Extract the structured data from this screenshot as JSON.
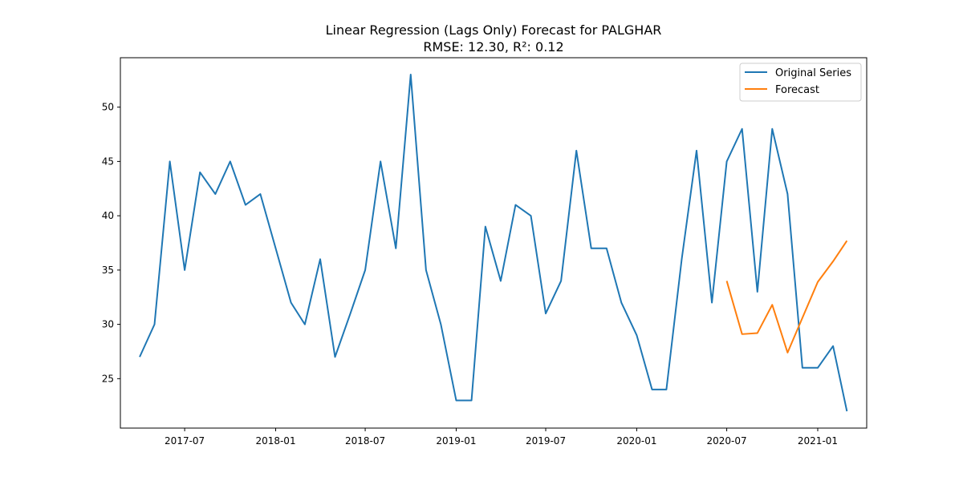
{
  "chart_data": {
    "type": "line",
    "title": "Linear Regression (Lags Only) Forecast for PALGHAR",
    "subtitle": "RMSE: 12.30, R²: 0.12",
    "xlabel": "",
    "ylabel": "",
    "ylim": [
      20.45,
      54.55
    ],
    "xlim": [
      "2017-02-21",
      "2021-04-10"
    ],
    "x_ticks": [
      "2017-07",
      "2018-01",
      "2018-07",
      "2019-01",
      "2019-07",
      "2020-01",
      "2020-07",
      "2021-01"
    ],
    "y_ticks": [
      25,
      30,
      35,
      40,
      45,
      50
    ],
    "grid": false,
    "legend_position": "top-right",
    "series": [
      {
        "name": "Original Series",
        "color": "#1f77b4",
        "x": [
          "2017-04-01",
          "2017-05-01",
          "2017-06-01",
          "2017-07-01",
          "2017-08-01",
          "2017-09-01",
          "2017-10-01",
          "2017-11-01",
          "2017-12-01",
          "2018-01-01",
          "2018-02-01",
          "2018-03-01",
          "2018-04-01",
          "2018-05-01",
          "2018-06-01",
          "2018-07-01",
          "2018-08-01",
          "2018-09-01",
          "2018-10-01",
          "2018-11-01",
          "2018-12-01",
          "2019-01-01",
          "2019-02-01",
          "2019-03-01",
          "2019-04-01",
          "2019-05-01",
          "2019-06-01",
          "2019-07-01",
          "2019-08-01",
          "2019-09-01",
          "2019-10-01",
          "2019-11-01",
          "2019-12-01",
          "2020-01-01",
          "2020-02-01",
          "2020-03-01",
          "2020-04-01",
          "2020-05-01",
          "2020-06-01",
          "2020-07-01",
          "2020-08-01",
          "2020-09-01",
          "2020-10-01",
          "2020-11-01",
          "2020-12-01",
          "2021-01-01",
          "2021-02-01",
          "2021-03-01"
        ],
        "values": [
          27,
          30,
          45,
          35,
          44,
          42,
          45,
          41,
          42,
          37,
          32,
          30,
          36,
          27,
          31,
          35,
          45,
          37,
          53,
          35,
          30,
          23,
          23,
          39,
          34,
          41,
          40,
          31,
          34,
          46,
          37,
          37,
          32,
          29,
          24,
          24,
          36,
          46,
          32,
          45,
          48,
          33,
          48,
          42,
          26,
          26,
          28,
          22
        ]
      },
      {
        "name": "Forecast",
        "color": "#ff7f0e",
        "x": [
          "2020-07-01",
          "2020-08-01",
          "2020-09-01",
          "2020-10-01",
          "2020-11-01",
          "2020-12-01",
          "2021-01-01",
          "2021-02-01",
          "2021-03-01"
        ],
        "values": [
          34.0,
          29.1,
          29.2,
          31.8,
          27.4,
          30.6,
          33.9,
          35.8,
          37.7
        ]
      }
    ]
  }
}
